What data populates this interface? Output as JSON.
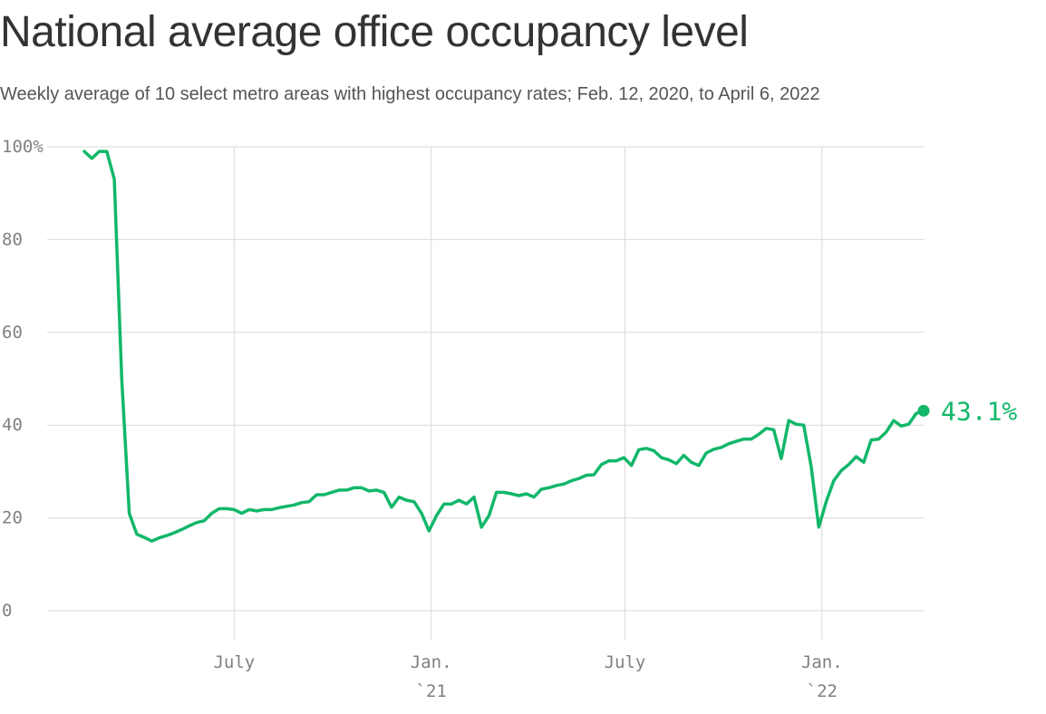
{
  "chart_data": {
    "type": "line",
    "title": "National average office occupancy level",
    "subtitle": "Weekly average of 10 select metro areas with highest occupancy rates; Feb. 12, 2020, to April 6, 2022",
    "xlabel": "",
    "ylabel": "",
    "ylim": [
      0,
      100
    ],
    "xlim": [
      "2020-02-12",
      "2022-04-06"
    ],
    "y_ticks": [
      {
        "value": 100,
        "label": "100%"
      },
      {
        "value": 80,
        "label": "80"
      },
      {
        "value": 60,
        "label": "60"
      },
      {
        "value": 40,
        "label": "40"
      },
      {
        "value": 20,
        "label": "20"
      },
      {
        "value": 0,
        "label": "0"
      }
    ],
    "x_ticks": [
      {
        "date": "2020-07-01",
        "label": "July",
        "sublabel": ""
      },
      {
        "date": "2021-01-01",
        "label": "Jan.",
        "sublabel": "`21"
      },
      {
        "date": "2021-07-01",
        "label": "July",
        "sublabel": ""
      },
      {
        "date": "2022-01-01",
        "label": "Jan.",
        "sublabel": "`22"
      }
    ],
    "grid": true,
    "line_color": "#12b76a",
    "end_label": "43.1%",
    "series": [
      {
        "points": [
          [
            "2020-02-12",
            99.0
          ],
          [
            "2020-02-19",
            97.5
          ],
          [
            "2020-02-26",
            99.0
          ],
          [
            "2020-03-04",
            99.0
          ],
          [
            "2020-03-11",
            93.0
          ],
          [
            "2020-03-18",
            50.0
          ],
          [
            "2020-03-25",
            21.0
          ],
          [
            "2020-04-01",
            16.5
          ],
          [
            "2020-04-08",
            15.8
          ],
          [
            "2020-04-15",
            15.0
          ],
          [
            "2020-04-22",
            15.7
          ],
          [
            "2020-04-29",
            16.2
          ],
          [
            "2020-05-06",
            16.8
          ],
          [
            "2020-05-13",
            17.5
          ],
          [
            "2020-05-20",
            18.3
          ],
          [
            "2020-05-27",
            19.0
          ],
          [
            "2020-06-03",
            19.4
          ],
          [
            "2020-06-10",
            21.0
          ],
          [
            "2020-06-17",
            22.0
          ],
          [
            "2020-06-24",
            22.0
          ],
          [
            "2020-07-01",
            21.8
          ],
          [
            "2020-07-08",
            21.0
          ],
          [
            "2020-07-15",
            21.8
          ],
          [
            "2020-07-22",
            21.5
          ],
          [
            "2020-07-29",
            21.8
          ],
          [
            "2020-08-05",
            21.8
          ],
          [
            "2020-08-12",
            22.2
          ],
          [
            "2020-08-19",
            22.5
          ],
          [
            "2020-08-26",
            22.8
          ],
          [
            "2020-09-02",
            23.3
          ],
          [
            "2020-09-09",
            23.5
          ],
          [
            "2020-09-16",
            25.0
          ],
          [
            "2020-09-23",
            25.0
          ],
          [
            "2020-09-30",
            25.5
          ],
          [
            "2020-10-07",
            26.0
          ],
          [
            "2020-10-14",
            26.0
          ],
          [
            "2020-10-21",
            26.5
          ],
          [
            "2020-10-28",
            26.5
          ],
          [
            "2020-11-04",
            25.8
          ],
          [
            "2020-11-11",
            26.0
          ],
          [
            "2020-11-18",
            25.5
          ],
          [
            "2020-11-25",
            22.3
          ],
          [
            "2020-12-02",
            24.5
          ],
          [
            "2020-12-09",
            23.8
          ],
          [
            "2020-12-16",
            23.5
          ],
          [
            "2020-12-23",
            21.0
          ],
          [
            "2020-12-30",
            17.2
          ],
          [
            "2021-01-06",
            20.5
          ],
          [
            "2021-01-13",
            23.0
          ],
          [
            "2021-01-20",
            23.0
          ],
          [
            "2021-01-27",
            23.8
          ],
          [
            "2021-02-03",
            23.0
          ],
          [
            "2021-02-10",
            24.5
          ],
          [
            "2021-02-17",
            18.0
          ],
          [
            "2021-02-24",
            20.5
          ],
          [
            "2021-03-03",
            25.5
          ],
          [
            "2021-03-10",
            25.5
          ],
          [
            "2021-03-17",
            25.2
          ],
          [
            "2021-03-24",
            24.8
          ],
          [
            "2021-03-31",
            25.2
          ],
          [
            "2021-04-07",
            24.5
          ],
          [
            "2021-04-14",
            26.2
          ],
          [
            "2021-04-21",
            26.5
          ],
          [
            "2021-04-28",
            27.0
          ],
          [
            "2021-05-05",
            27.3
          ],
          [
            "2021-05-12",
            28.0
          ],
          [
            "2021-05-19",
            28.5
          ],
          [
            "2021-05-26",
            29.2
          ],
          [
            "2021-06-02",
            29.3
          ],
          [
            "2021-06-09",
            31.5
          ],
          [
            "2021-06-16",
            32.3
          ],
          [
            "2021-06-23",
            32.3
          ],
          [
            "2021-06-30",
            33.0
          ],
          [
            "2021-07-07",
            31.3
          ],
          [
            "2021-07-14",
            34.7
          ],
          [
            "2021-07-21",
            35.0
          ],
          [
            "2021-07-28",
            34.5
          ],
          [
            "2021-08-04",
            33.0
          ],
          [
            "2021-08-11",
            32.5
          ],
          [
            "2021-08-18",
            31.7
          ],
          [
            "2021-08-25",
            33.5
          ],
          [
            "2021-09-01",
            32.0
          ],
          [
            "2021-09-08",
            31.3
          ],
          [
            "2021-09-15",
            34.0
          ],
          [
            "2021-09-22",
            34.8
          ],
          [
            "2021-09-29",
            35.2
          ],
          [
            "2021-10-06",
            36.0
          ],
          [
            "2021-10-13",
            36.5
          ],
          [
            "2021-10-20",
            37.0
          ],
          [
            "2021-10-27",
            37.0
          ],
          [
            "2021-11-03",
            38.0
          ],
          [
            "2021-11-10",
            39.3
          ],
          [
            "2021-11-17",
            39.0
          ],
          [
            "2021-11-24",
            32.8
          ],
          [
            "2021-12-01",
            41.0
          ],
          [
            "2021-12-08",
            40.2
          ],
          [
            "2021-12-15",
            40.0
          ],
          [
            "2021-12-22",
            31.0
          ],
          [
            "2021-12-29",
            18.0
          ],
          [
            "2022-01-05",
            23.5
          ],
          [
            "2022-01-12",
            28.0
          ],
          [
            "2022-01-19",
            30.2
          ],
          [
            "2022-01-26",
            31.5
          ],
          [
            "2022-02-02",
            33.2
          ],
          [
            "2022-02-09",
            32.0
          ],
          [
            "2022-02-16",
            36.8
          ],
          [
            "2022-02-23",
            37.0
          ],
          [
            "2022-03-02",
            38.5
          ],
          [
            "2022-03-09",
            41.0
          ],
          [
            "2022-03-16",
            39.8
          ],
          [
            "2022-03-23",
            40.2
          ],
          [
            "2022-03-30",
            42.5
          ],
          [
            "2022-04-06",
            43.1
          ]
        ]
      }
    ]
  }
}
